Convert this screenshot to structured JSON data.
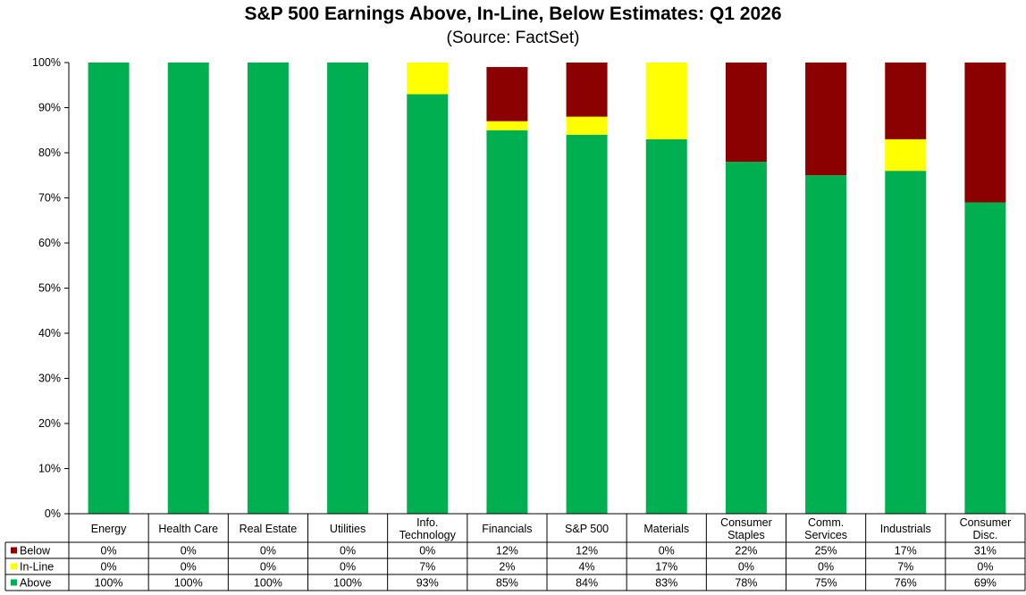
{
  "chart_data": {
    "type": "bar",
    "stacked": true,
    "title": "S&P 500 Earnings Above, In-Line, Below Estimates: Q1 2026",
    "subtitle": "(Source: FactSet)",
    "categories": [
      [
        "Energy"
      ],
      [
        "Health Care"
      ],
      [
        "Real Estate"
      ],
      [
        "Utilities"
      ],
      [
        "Info.",
        "Technology"
      ],
      [
        "Financials"
      ],
      [
        "S&P 500"
      ],
      [
        "Materials"
      ],
      [
        "Consumer",
        "Staples"
      ],
      [
        "Comm.",
        "Services"
      ],
      [
        "Industrials"
      ],
      [
        "Consumer",
        "Disc."
      ]
    ],
    "series": [
      {
        "name": "Below",
        "color": "#8B0000",
        "values": [
          0,
          0,
          0,
          0,
          0,
          12,
          12,
          0,
          22,
          25,
          17,
          31
        ],
        "labels": [
          "0%",
          "0%",
          "0%",
          "0%",
          "0%",
          "12%",
          "12%",
          "0%",
          "22%",
          "25%",
          "17%",
          "31%"
        ]
      },
      {
        "name": "In-Line",
        "color": "#FFFF00",
        "values": [
          0,
          0,
          0,
          0,
          7,
          2,
          4,
          17,
          0,
          0,
          7,
          0
        ],
        "labels": [
          "0%",
          "0%",
          "0%",
          "0%",
          "7%",
          "2%",
          "4%",
          "17%",
          "0%",
          "0%",
          "7%",
          "0%"
        ]
      },
      {
        "name": "Above",
        "color": "#00B050",
        "values": [
          100,
          100,
          100,
          100,
          93,
          85,
          84,
          83,
          78,
          75,
          76,
          69
        ],
        "labels": [
          "100%",
          "100%",
          "100%",
          "100%",
          "93%",
          "85%",
          "84%",
          "83%",
          "78%",
          "75%",
          "76%",
          "69%"
        ]
      }
    ],
    "stack_order": [
      "Above",
      "In-Line",
      "Below"
    ],
    "ylim": [
      0,
      100
    ],
    "yticks": [
      "0%",
      "10%",
      "20%",
      "30%",
      "40%",
      "50%",
      "60%",
      "70%",
      "80%",
      "90%",
      "100%"
    ],
    "xlabel": "",
    "ylabel": "",
    "data_table": true,
    "grid": false
  }
}
